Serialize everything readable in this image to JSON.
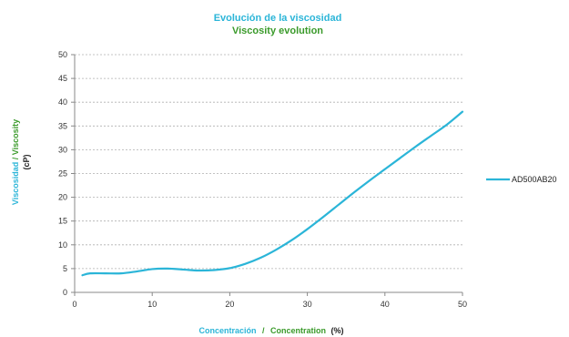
{
  "colors": {
    "primary": "#2bb5d8",
    "secondary": "#3a9a2a",
    "grid": "#b0b0b0",
    "axis": "#888888",
    "text": "#222222"
  },
  "chart_data": {
    "type": "line",
    "title": "Evolución de la  viscosidad",
    "subtitle": "Viscosity evolution",
    "xlabel": {
      "primary": "Concentración",
      "separator": "/",
      "secondary": "Concentration",
      "unit": "(%)"
    },
    "ylabel": {
      "primary": "Viscosidad",
      "separator": "/",
      "secondary": "Viscosity",
      "unit": "(cP)"
    },
    "xlim": [
      0,
      50
    ],
    "ylim": [
      0,
      50
    ],
    "x_ticks": [
      0,
      10,
      20,
      30,
      40,
      50
    ],
    "y_ticks": [
      0,
      5,
      10,
      15,
      20,
      25,
      30,
      35,
      40,
      45,
      50
    ],
    "grid": true,
    "legend": "right",
    "series": [
      {
        "name": "AD500AB20",
        "color": "#2bb5d8",
        "x": [
          1,
          2,
          4,
          6,
          8,
          10,
          12,
          14,
          16,
          18,
          20,
          22,
          24,
          26,
          28,
          30,
          32,
          34,
          36,
          38,
          40,
          42,
          44,
          46,
          48,
          50
        ],
        "y": [
          3.6,
          4.0,
          4.0,
          4.0,
          4.4,
          4.9,
          5.0,
          4.8,
          4.6,
          4.7,
          5.1,
          6.0,
          7.3,
          9.0,
          11.0,
          13.3,
          15.8,
          18.4,
          21.0,
          23.5,
          25.9,
          28.3,
          30.7,
          33.0,
          35.3,
          38.0
        ]
      }
    ]
  }
}
